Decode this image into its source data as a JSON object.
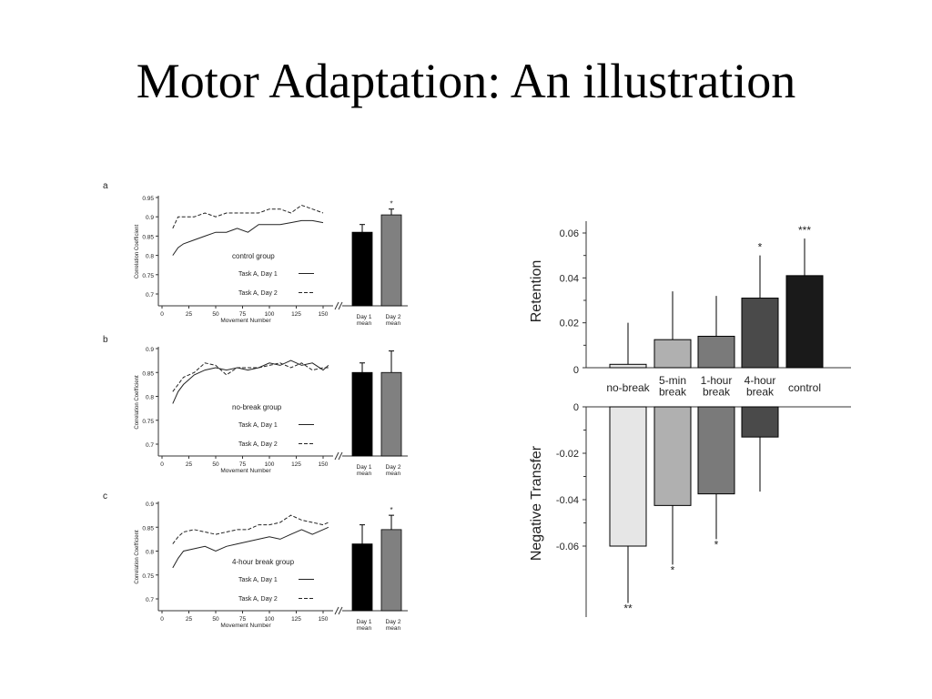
{
  "slide": {
    "title": "Motor Adaptation: An illustration"
  },
  "chart_data": [
    {
      "type": "line",
      "panel": "a",
      "legend_title": "control group",
      "xlabel": "Movement Number",
      "ylabel": "Correlation Coefficient",
      "xlim": [
        0,
        160
      ],
      "ylim": [
        0.7,
        0.95
      ],
      "xticks": [
        "0",
        "25",
        "50",
        "75",
        "100",
        "125",
        "150"
      ],
      "yticks": [
        "0.95",
        "0.9",
        "0.85",
        "0.8",
        "0.75",
        "0.7"
      ],
      "x": [
        10,
        15,
        20,
        30,
        40,
        50,
        60,
        70,
        80,
        90,
        100,
        110,
        120,
        130,
        140,
        150
      ],
      "series": [
        {
          "name": "Task A, Day 1",
          "dash": "solid",
          "values": [
            0.8,
            0.82,
            0.83,
            0.84,
            0.85,
            0.86,
            0.86,
            0.87,
            0.86,
            0.88,
            0.88,
            0.88,
            0.885,
            0.89,
            0.89,
            0.885
          ]
        },
        {
          "name": "Task A, Day 2",
          "dash": "dashed",
          "values": [
            0.87,
            0.9,
            0.9,
            0.9,
            0.91,
            0.9,
            0.91,
            0.91,
            0.91,
            0.91,
            0.92,
            0.92,
            0.91,
            0.93,
            0.92,
            0.91
          ]
        }
      ],
      "bars": {
        "categories": [
          "Day 1\nmean",
          "Day 2\nmean"
        ],
        "values": [
          0.86,
          0.905
        ],
        "errors": [
          0.02,
          0.015
        ],
        "colors": [
          "#000000",
          "#808080"
        ],
        "annotations": [
          "",
          "*"
        ]
      }
    },
    {
      "type": "line",
      "panel": "b",
      "legend_title": "no-break group",
      "xlabel": "Movement Number",
      "ylabel": "Correlation Coefficient",
      "xlim": [
        0,
        160
      ],
      "ylim": [
        0.7,
        0.9
      ],
      "xticks": [
        "0",
        "25",
        "50",
        "75",
        "100",
        "125",
        "150"
      ],
      "yticks": [
        "0.9",
        "0.85",
        "0.8",
        "0.75",
        "0.7"
      ],
      "x": [
        10,
        15,
        20,
        30,
        40,
        50,
        60,
        70,
        80,
        90,
        100,
        110,
        120,
        130,
        140,
        150,
        155
      ],
      "series": [
        {
          "name": "Task A, Day 1",
          "dash": "solid",
          "values": [
            0.785,
            0.81,
            0.825,
            0.845,
            0.855,
            0.86,
            0.855,
            0.86,
            0.855,
            0.86,
            0.87,
            0.865,
            0.875,
            0.865,
            0.87,
            0.855,
            0.865
          ]
        },
        {
          "name": "Task A, Day 2",
          "dash": "dashed",
          "values": [
            0.81,
            0.825,
            0.84,
            0.85,
            0.87,
            0.865,
            0.845,
            0.86,
            0.86,
            0.86,
            0.865,
            0.87,
            0.86,
            0.87,
            0.855,
            0.86,
            0.86
          ]
        }
      ],
      "bars": {
        "categories": [
          "Day 1\nmean",
          "Day 2\nmean"
        ],
        "values": [
          0.85,
          0.85
        ],
        "errors": [
          0.02,
          0.045
        ],
        "colors": [
          "#000000",
          "#808080"
        ],
        "annotations": [
          "",
          ""
        ]
      }
    },
    {
      "type": "line",
      "panel": "c",
      "legend_title": "4-hour break group",
      "xlabel": "Movement Number",
      "ylabel": "Correlation Coefficient",
      "xlim": [
        0,
        160
      ],
      "ylim": [
        0.7,
        0.9
      ],
      "xticks": [
        "0",
        "25",
        "50",
        "75",
        "100",
        "125",
        "150"
      ],
      "yticks": [
        "0.9",
        "0.85",
        "0.8",
        "0.75",
        "0.7"
      ],
      "x": [
        10,
        15,
        20,
        30,
        40,
        50,
        60,
        70,
        80,
        90,
        100,
        110,
        120,
        130,
        140,
        150,
        155
      ],
      "series": [
        {
          "name": "Task A, Day 1",
          "dash": "solid",
          "values": [
            0.765,
            0.785,
            0.8,
            0.805,
            0.81,
            0.8,
            0.81,
            0.815,
            0.82,
            0.825,
            0.83,
            0.825,
            0.835,
            0.845,
            0.835,
            0.845,
            0.85
          ]
        },
        {
          "name": "Task A, Day 2",
          "dash": "dashed",
          "values": [
            0.815,
            0.83,
            0.84,
            0.845,
            0.84,
            0.835,
            0.84,
            0.845,
            0.845,
            0.855,
            0.855,
            0.86,
            0.875,
            0.865,
            0.86,
            0.855,
            0.86
          ]
        }
      ],
      "bars": {
        "categories": [
          "Day 1\nmean",
          "Day 2\nmean"
        ],
        "values": [
          0.815,
          0.845
        ],
        "errors": [
          0.04,
          0.03
        ],
        "colors": [
          "#000000",
          "#808080"
        ],
        "annotations": [
          "",
          "*"
        ]
      }
    },
    {
      "type": "bar",
      "panel": "retention",
      "ylabel": "Retention",
      "ylim": [
        0,
        0.065
      ],
      "yticks": [
        "0.06",
        "0.04",
        "0.02",
        "0"
      ],
      "categories": [
        "no-break",
        "5-min\nbreak",
        "1-hour\nbreak",
        "4-hour\nbreak",
        "control"
      ],
      "values": [
        0.0015,
        0.0125,
        0.014,
        0.031,
        0.041
      ],
      "errors": [
        0.0185,
        0.0215,
        0.018,
        0.019,
        0.0165
      ],
      "colors": [
        "#e6e6e6",
        "#b0b0b0",
        "#7a7a7a",
        "#4a4a4a",
        "#1a1a1a"
      ],
      "annotations": [
        "",
        "",
        "",
        "*",
        "***"
      ]
    },
    {
      "type": "bar",
      "panel": "negative-transfer",
      "ylabel": "Negative Transfer",
      "ylim": [
        -0.09,
        0
      ],
      "yticks": [
        "0",
        "-0.02",
        "-0.04",
        "-0.06"
      ],
      "categories": [
        "no-break",
        "5-min\nbreak",
        "1-hour\nbreak",
        "4-hour\nbreak",
        "control"
      ],
      "values": [
        -0.06,
        -0.0425,
        -0.0375,
        -0.013,
        null
      ],
      "errors": [
        0.0245,
        0.0255,
        0.0195,
        0.0235,
        null
      ],
      "colors": [
        "#e6e6e6",
        "#b0b0b0",
        "#7a7a7a",
        "#4a4a4a",
        "#1a1a1a"
      ],
      "annotations": [
        "**",
        "*",
        "*",
        "",
        ""
      ]
    }
  ]
}
